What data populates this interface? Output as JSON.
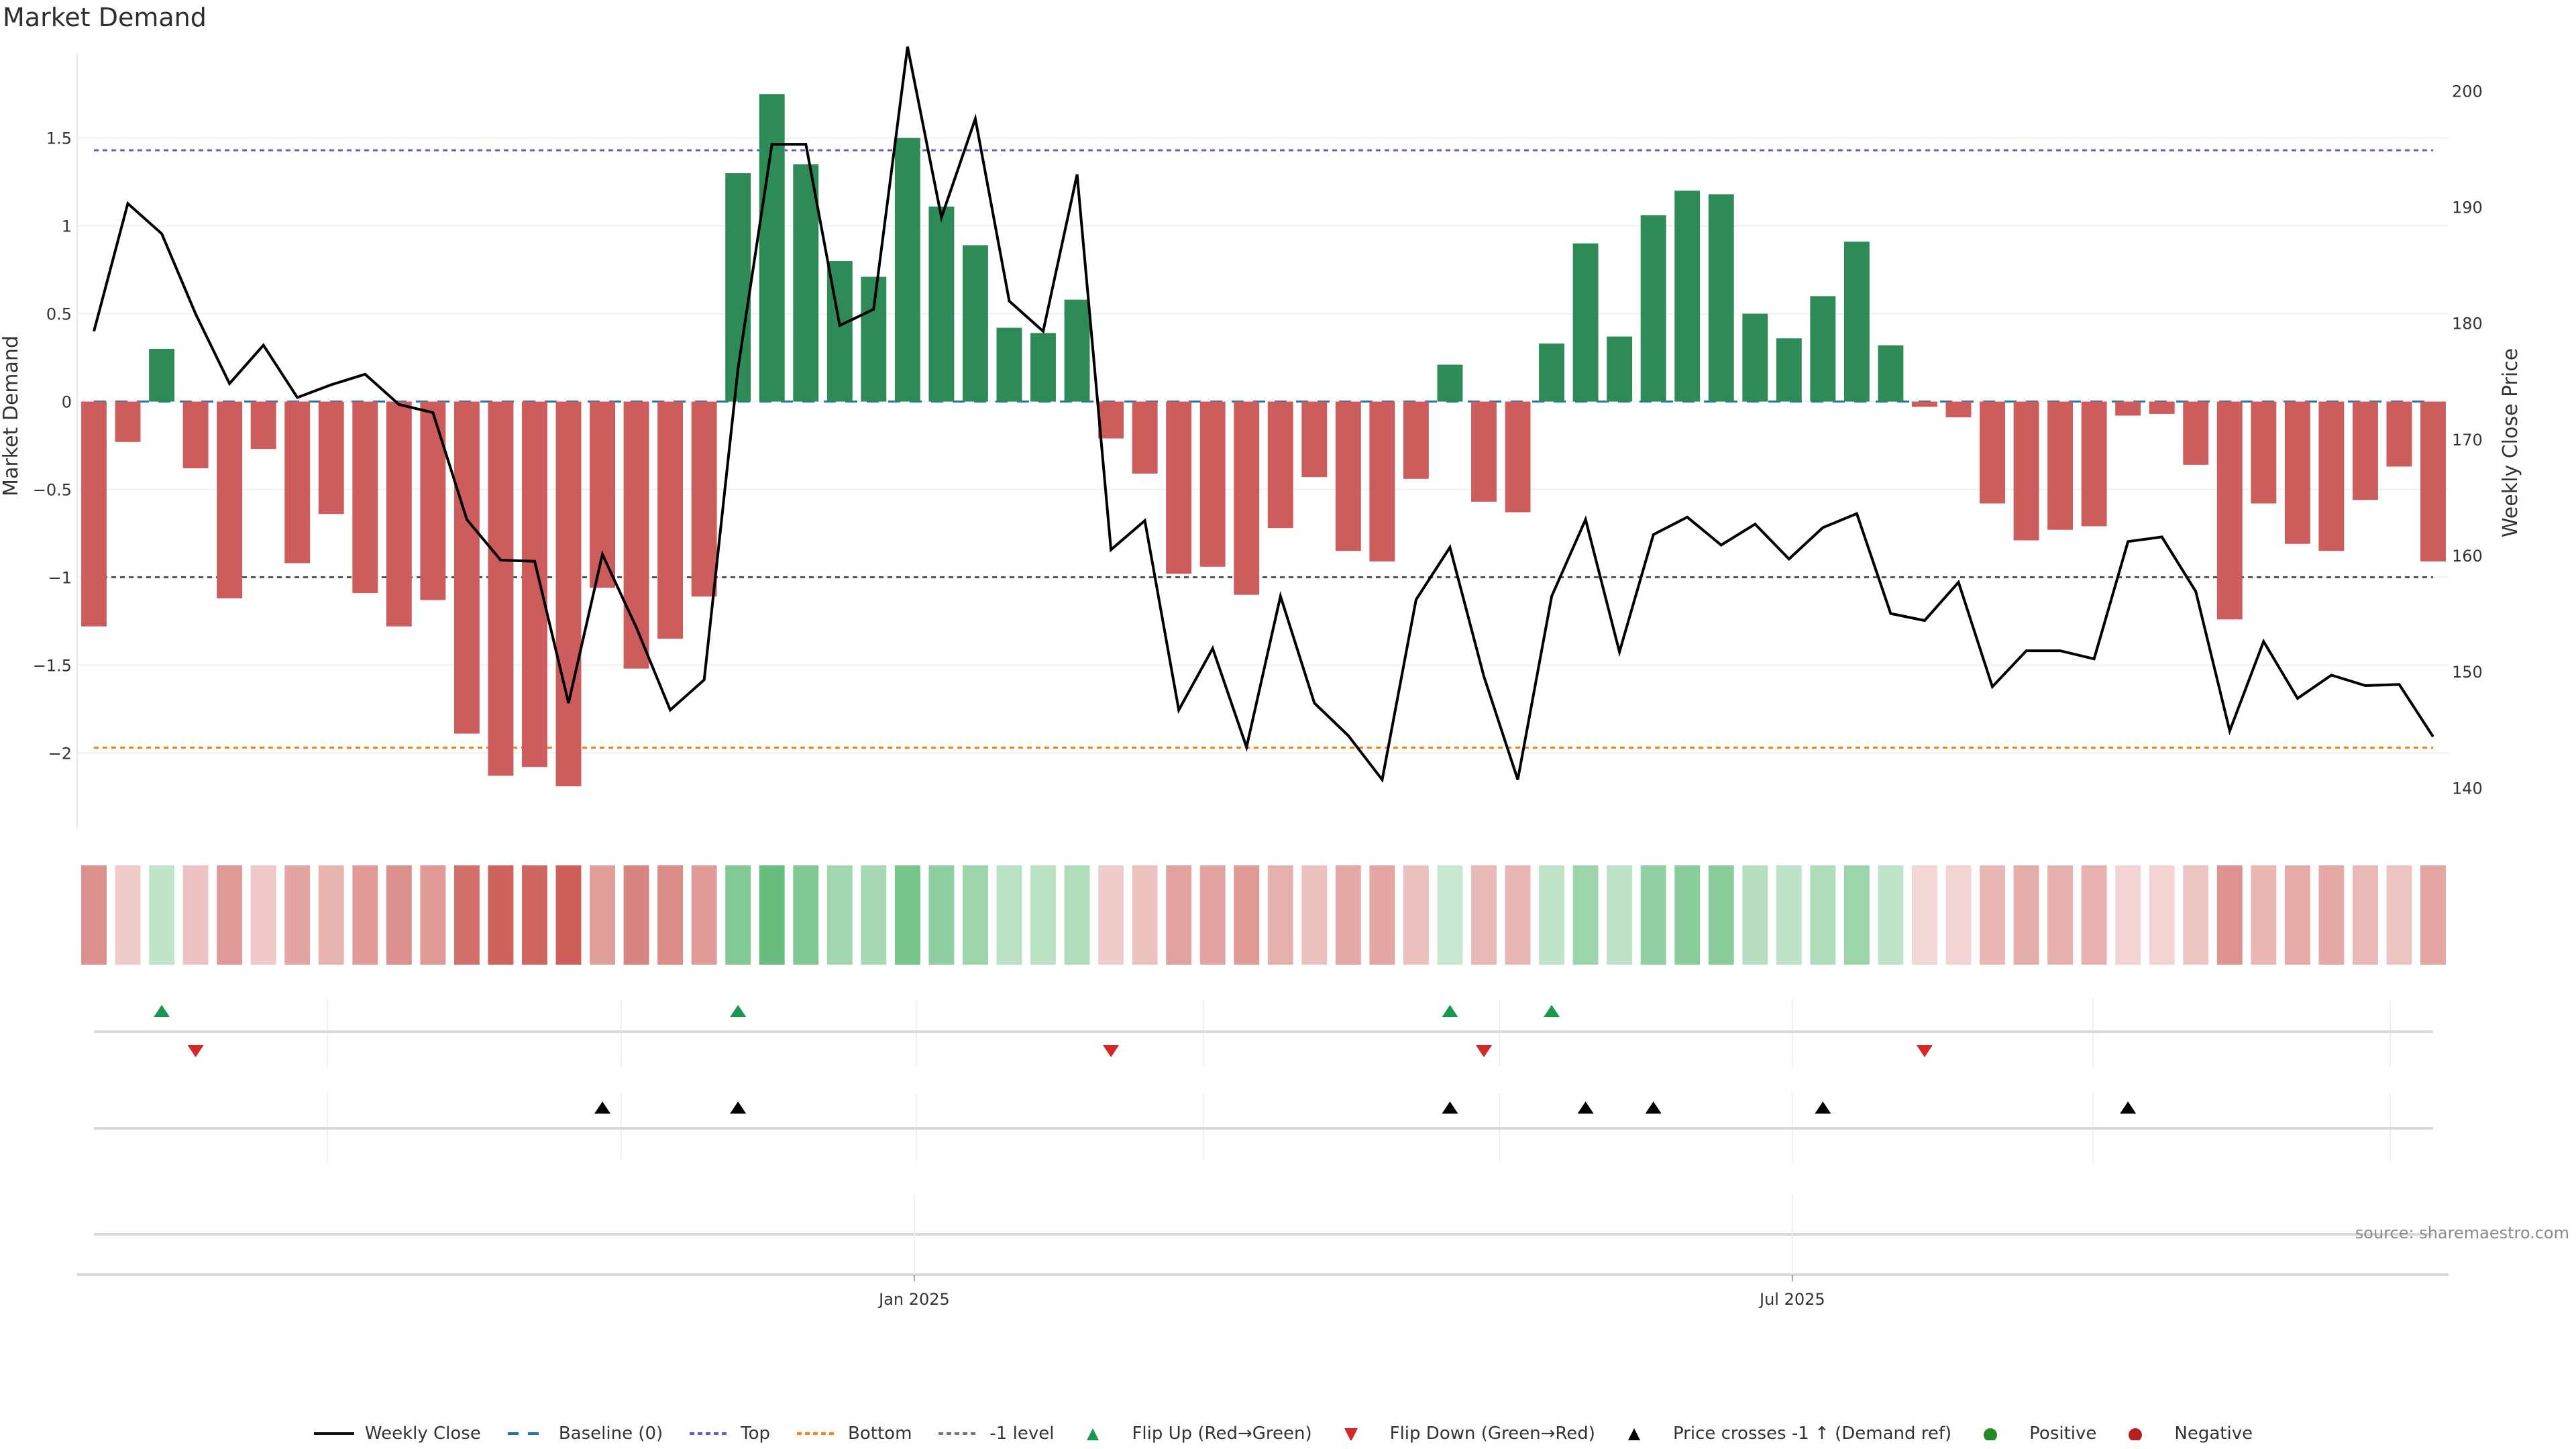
{
  "title": "Market Demand",
  "source": "source: sharemaestro.com",
  "colors": {
    "positive_bar": "#2e8b57",
    "negative_bar": "#cd5c5c",
    "price_line": "#000000",
    "baseline": "#1f77b4",
    "top": "#6a5acd",
    "bottom": "#ff7f0e",
    "minus1": "#555555",
    "flip_up": "#1a9850",
    "flip_down": "#d62728",
    "cross": "#000000",
    "legend_positive": "#228b22",
    "legend_negative": "#b22222"
  },
  "chart_data": {
    "type": "bar",
    "title": "Market Demand",
    "ylabel": "Market Demand",
    "y2label": "Weekly Close Price",
    "ylim": [
      -2.43,
      1.98
    ],
    "y2lim": [
      136.5,
      203.2
    ],
    "yticks": [
      "1.5",
      "1",
      "0.5",
      "0",
      "−0.5",
      "−1",
      "−1.5",
      "−2"
    ],
    "ytick_values": [
      1.5,
      1,
      0.5,
      0,
      -0.5,
      -1,
      -1.5,
      -2
    ],
    "y2ticks": [
      "200",
      "190",
      "180",
      "170",
      "160",
      "150",
      "140"
    ],
    "y2tick_values": [
      200,
      190,
      180,
      170,
      160,
      150,
      140
    ],
    "xticks": [
      "Jan 2025",
      "Jul 2025"
    ],
    "xtick_index": [
      24.2,
      50.1
    ],
    "reference_lines": {
      "top": 1.43,
      "bottom": -1.97,
      "minus1": -1.0,
      "baseline": 0
    },
    "demand": [
      -1.28,
      -0.23,
      0.3,
      -0.38,
      -1.12,
      -0.27,
      -0.92,
      -0.64,
      -1.09,
      -1.28,
      -1.13,
      -1.89,
      -2.13,
      -2.08,
      -2.19,
      -1.06,
      -1.52,
      -1.35,
      -1.11,
      1.3,
      1.75,
      1.35,
      0.8,
      0.71,
      1.5,
      1.11,
      0.89,
      0.42,
      0.39,
      0.58,
      -0.21,
      -0.41,
      -0.98,
      -0.94,
      -1.1,
      -0.72,
      -0.43,
      -0.85,
      -0.91,
      -0.44,
      0.21,
      -0.57,
      -0.63,
      0.33,
      0.9,
      0.37,
      1.06,
      1.2,
      1.18,
      0.5,
      0.36,
      0.6,
      0.91,
      0.32,
      -0.03,
      -0.09,
      -0.58,
      -0.79,
      -0.73,
      -0.71,
      -0.08,
      -0.07,
      -0.36,
      -1.24,
      -0.58,
      -0.81,
      -0.85,
      -0.56,
      -0.37,
      -0.91
    ],
    "weekly_close": [
      179.3,
      190.3,
      187.7,
      180.8,
      174.8,
      178.1,
      173.6,
      174.7,
      175.6,
      173.0,
      172.3,
      163.1,
      159.6,
      159.5,
      147.3,
      160.1,
      153.8,
      146.7,
      149.3,
      176.1,
      195.4,
      195.4,
      179.8,
      181.2,
      203.8,
      189.1,
      197.6,
      181.9,
      179.3,
      192.8,
      160.5,
      163.0,
      146.7,
      152.0,
      143.5,
      156.5,
      147.3,
      144.5,
      140.7,
      156.2,
      160.7,
      149.6,
      140.7,
      156.5,
      163.1,
      151.7,
      161.8,
      163.3,
      160.9,
      162.7,
      159.7,
      162.4,
      163.6,
      155.0,
      154.4,
      157.7,
      148.7,
      151.8,
      151.8,
      151.1,
      161.2,
      161.6,
      156.9,
      144.9,
      152.6,
      147.7,
      149.7,
      148.8,
      148.9,
      144.4
    ],
    "flip_up_index": [
      2,
      19,
      40,
      43
    ],
    "flip_down_index": [
      3,
      30,
      41,
      54
    ],
    "price_cross_index": [
      15,
      19,
      40,
      44,
      46,
      51,
      60
    ],
    "legend": [
      "Weekly Close",
      "Baseline (0)",
      "Top",
      "Bottom",
      "-1 level",
      "Flip Up (Red→Green)",
      "Flip Down (Green→Red)",
      "Price crosses -1 ↑ (Demand ref)",
      "Positive",
      "Negative"
    ],
    "legend_position": "bottom"
  }
}
